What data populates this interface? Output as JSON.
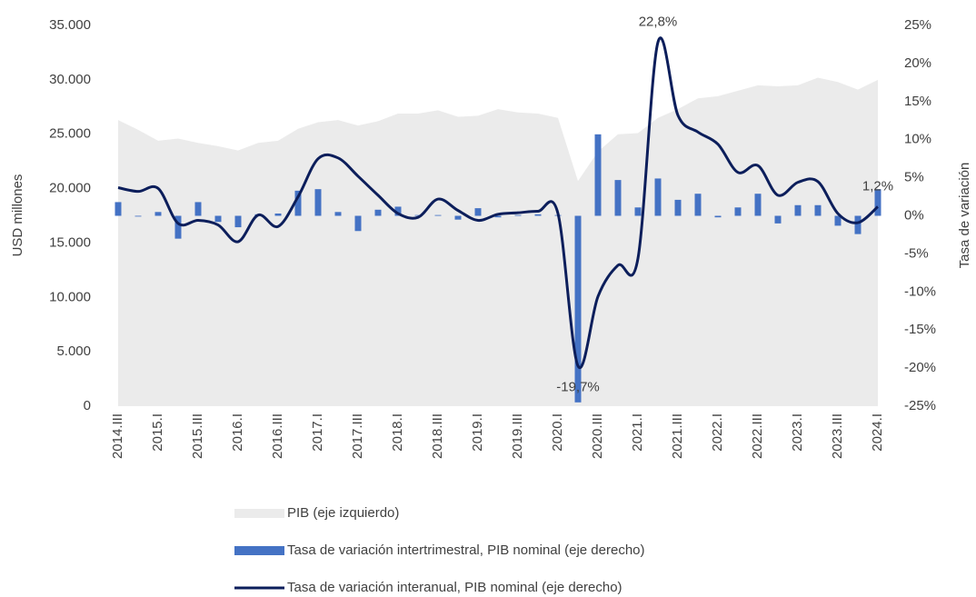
{
  "chart_data": {
    "type": "combo",
    "y_label": "USD millones",
    "y2_label": "Tasa de variación",
    "categories": [
      "2014.III",
      null,
      "2015.I",
      null,
      "2015.III",
      null,
      "2016.I",
      null,
      "2016.III",
      null,
      "2017.I",
      null,
      "2017.III",
      null,
      "2018.I",
      null,
      "2018.III",
      null,
      "2019.I",
      null,
      "2019.III",
      null,
      "2020.I",
      null,
      "2020.III",
      null,
      "2021.I",
      null,
      "2021.III",
      null,
      "2022.I",
      null,
      "2022.III",
      null,
      "2023.I",
      null,
      "2023.III",
      null,
      "2024.I"
    ],
    "ylim": [
      0,
      35000
    ],
    "yticks": [
      0,
      {
        "value": 5000,
        "label": "5.000"
      },
      {
        "value": 10000,
        "label": "10.000"
      },
      {
        "value": 15000,
        "label": "15.000"
      },
      {
        "value": 20000,
        "label": "20.000"
      },
      {
        "value": 25000,
        "label": "25.000"
      },
      {
        "value": 30000,
        "label": "30.000"
      },
      {
        "value": 35000,
        "label": "35.000"
      }
    ],
    "y2lim": [
      -25,
      25
    ],
    "y2ticks": [
      {
        "value": -25,
        "label": "-25%"
      },
      {
        "value": -20,
        "label": "-20%"
      },
      {
        "value": -15,
        "label": "-15%"
      },
      {
        "value": -10,
        "label": "-10%"
      },
      {
        "value": -5,
        "label": "-5%"
      },
      {
        "value": 0,
        "label": "0%"
      },
      {
        "value": 5,
        "label": "5%"
      },
      {
        "value": 10,
        "label": "10%"
      },
      {
        "value": 15,
        "label": "15%"
      },
      {
        "value": 20,
        "label": "20%"
      },
      {
        "value": 25,
        "label": "25%"
      }
    ],
    "series": [
      {
        "name": "PIB (eje izquierdo)",
        "type": "area",
        "color": "#ebebeb",
        "values": [
          26300,
          25400,
          24400,
          24600,
          24200,
          23900,
          23500,
          24200,
          24400,
          25500,
          26100,
          26300,
          25800,
          26200,
          26900,
          26900,
          27200,
          26600,
          26700,
          27300,
          27000,
          26900,
          26500,
          20700,
          23400,
          25000,
          25100,
          26500,
          27300,
          28300,
          28500,
          29000,
          29500,
          29400,
          29500,
          30200,
          29800,
          29100,
          30000
        ]
      },
      {
        "name": "Tasa de variación intertrimestral, PIB nominal (eje derecho)",
        "type": "bar",
        "axis": "y2",
        "color": "#4472c4",
        "values": [
          1.8,
          -0.1,
          0.5,
          -3.0,
          1.8,
          -0.8,
          -1.5,
          0.2,
          0.3,
          3.3,
          3.5,
          0.5,
          -2.0,
          0.8,
          1.2,
          0.1,
          0.1,
          -0.5,
          1.0,
          -0.2,
          0.1,
          0.2,
          0.1,
          -24.5,
          10.7,
          4.7,
          1.1,
          4.9,
          2.1,
          2.9,
          -0.2,
          1.1,
          2.9,
          -1.0,
          1.4,
          1.4,
          -1.3,
          -2.4,
          3.5
        ]
      },
      {
        "name": "Tasa de variación interanual, PIB nominal (eje derecho)",
        "type": "line",
        "axis": "y2",
        "color": "#0c1e5b",
        "values": [
          3.7,
          3.2,
          3.6,
          -1.0,
          -0.6,
          -1.2,
          -3.4,
          0.1,
          -1.4,
          2.5,
          7.5,
          7.6,
          5.2,
          2.7,
          0.3,
          -0.2,
          2.2,
          0.7,
          -0.6,
          0.2,
          0.4,
          0.6,
          0.3,
          -19.7,
          -10.6,
          -6.5,
          -5.6,
          22.8,
          13.2,
          11.0,
          9.4,
          5.7,
          6.6,
          2.7,
          4.4,
          4.5,
          0.3,
          -0.9,
          1.2
        ],
        "value_labels": [
          null,
          null,
          null,
          null,
          null,
          null,
          null,
          null,
          null,
          null,
          null,
          null,
          null,
          null,
          null,
          null,
          null,
          null,
          null,
          null,
          null,
          null,
          null,
          "-19,7%",
          null,
          null,
          null,
          "22,8%",
          null,
          null,
          null,
          null,
          null,
          null,
          null,
          null,
          null,
          null,
          "1,2%"
        ]
      }
    ]
  }
}
